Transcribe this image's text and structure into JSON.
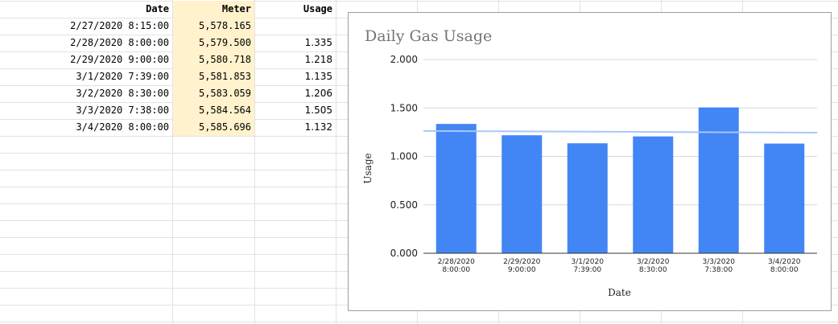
{
  "sheet": {
    "headers": [
      "Date",
      "Meter",
      "Usage"
    ],
    "rows": [
      {
        "date": "2/27/2020 8:15:00",
        "meter": "5,578.165",
        "usage": ""
      },
      {
        "date": "2/28/2020 8:00:00",
        "meter": "5,579.500",
        "usage": "1.335"
      },
      {
        "date": "2/29/2020 9:00:00",
        "meter": "5,580.718",
        "usage": "1.218"
      },
      {
        "date": "3/1/2020 7:39:00",
        "meter": "5,581.853",
        "usage": "1.135"
      },
      {
        "date": "3/2/2020 8:30:00",
        "meter": "5,583.059",
        "usage": "1.206"
      },
      {
        "date": "3/3/2020 7:38:00",
        "meter": "5,584.564",
        "usage": "1.505"
      },
      {
        "date": "3/4/2020 8:00:00",
        "meter": "5,585.696",
        "usage": "1.132"
      }
    ]
  },
  "chart_data": {
    "type": "bar",
    "title": "Daily Gas Usage",
    "xlabel": "Date",
    "ylabel": "Usage",
    "categories": [
      [
        "2/28/2020",
        "8:00:00"
      ],
      [
        "2/29/2020",
        "9:00:00"
      ],
      [
        "3/1/2020",
        "7:39:00"
      ],
      [
        "3/2/2020",
        "8:30:00"
      ],
      [
        "3/3/2020",
        "7:38:00"
      ],
      [
        "3/4/2020",
        "8:00:00"
      ]
    ],
    "values": [
      1.335,
      1.218,
      1.135,
      1.206,
      1.505,
      1.132
    ],
    "ylim": [
      0,
      2
    ],
    "yticks": [
      "0.000",
      "0.500",
      "1.000",
      "1.500",
      "2.000"
    ],
    "trendline": {
      "start": 1.262,
      "end": 1.245
    },
    "grid": true,
    "legend": "none",
    "colors": {
      "bar": "#4285f4",
      "trend": "#a8c7fa",
      "grid": "#d9d9d9",
      "title": "#757575"
    }
  }
}
